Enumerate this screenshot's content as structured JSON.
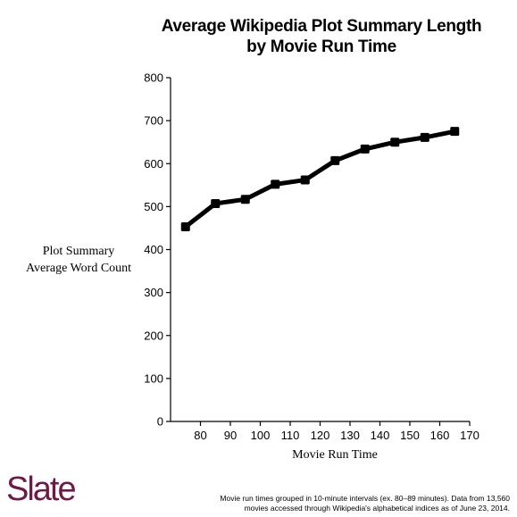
{
  "header": {
    "title_line1": "Average Wikipedia Plot Summary Length",
    "title_line2": "by Movie Run Time"
  },
  "axes": {
    "ylabel_line1": "Plot Summary",
    "ylabel_line2": "Average Word Count",
    "xlabel": "Movie Run Time"
  },
  "brand": {
    "logo_text": "Slate",
    "logo_color": "#6d1b46"
  },
  "footer": {
    "note_line1": "Movie run times grouped in 10-minute intervals (ex. 80–89 minutes). Data from 13,560",
    "note_line2": "movies accessed through Wikipedia's alphabetical indices as of June 23, 2014."
  },
  "chart_data": {
    "type": "line",
    "title": "Average Wikipedia Plot Summary Length by Movie Run Time",
    "xlabel": "Movie Run Time",
    "ylabel": "Plot Summary Average Word Count",
    "xlim": [
      70,
      170
    ],
    "ylim": [
      0,
      800
    ],
    "x_ticks": [
      80,
      90,
      100,
      110,
      120,
      130,
      140,
      150,
      160,
      170
    ],
    "y_ticks": [
      0,
      100,
      200,
      300,
      400,
      500,
      600,
      700,
      800
    ],
    "grid": false,
    "line_color": "#000000",
    "series": [
      {
        "x": [
          75,
          85,
          95,
          105,
          115,
          125,
          135,
          145,
          155,
          165
        ],
        "values": [
          453,
          507,
          517,
          552,
          562,
          607,
          634,
          650,
          661,
          675
        ]
      }
    ]
  }
}
